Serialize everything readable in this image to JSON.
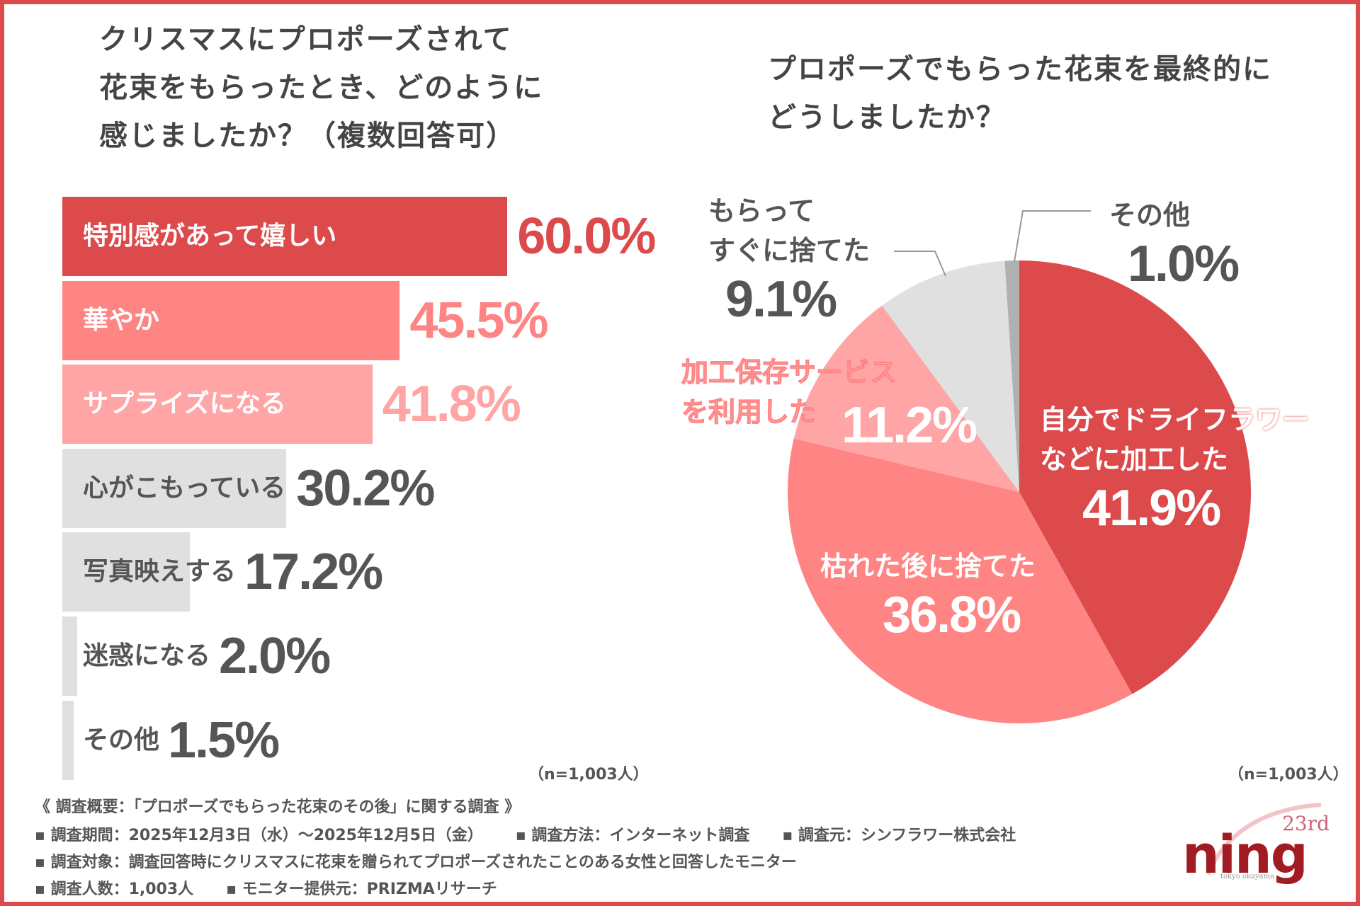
{
  "colors": {
    "red": "#dc4a4c",
    "pink": "#ff8585",
    "light_pink": "#ffa5a5",
    "gray": "#e0e0e0",
    "dark_gray": "#b0b0b0",
    "text": "#555555"
  },
  "chart_data": [
    {
      "type": "bar",
      "orientation": "horizontal",
      "title": [
        "クリスマスにプロポーズされて",
        "花束をもらったとき、どのように",
        "感じましたか？（複数回答可）"
      ],
      "categories": [
        "特別感があって嬉しい",
        "華やか",
        "サプライズになる",
        "心がこもっている",
        "写真映えする",
        "迷惑になる",
        "その他"
      ],
      "values": [
        60.0,
        45.5,
        41.8,
        30.2,
        17.2,
        2.0,
        1.5
      ],
      "labels": [
        "60.0%",
        "45.5%",
        "41.8%",
        "30.2%",
        "17.2%",
        "2.0%",
        "1.5%"
      ],
      "bar_colors": [
        "#dc4a4c",
        "#ff8585",
        "#ffa5a5",
        "#e0e0e0",
        "#e0e0e0",
        "#e0e0e0",
        "#e0e0e0"
      ],
      "note": "（n=1,003人）"
    },
    {
      "type": "pie",
      "title": [
        "プロポーズでもらった花束を最終的に",
        "どうしましたか？"
      ],
      "categories": [
        "自分でドライフラワーなどに加工した",
        "枯れた後に捨てた",
        "加工保存サービスを利用した",
        "もらってすぐに捨てた",
        "その他"
      ],
      "label_lines": [
        [
          "自分でドライフラワー",
          "などに加工した"
        ],
        [
          "枯れた後に捨てた"
        ],
        [
          "加工保存サービス",
          "を利用した"
        ],
        [
          "もらって",
          "すぐに捨てた"
        ],
        [
          "その他"
        ]
      ],
      "values": [
        41.9,
        36.8,
        11.2,
        9.1,
        1.0
      ],
      "labels": [
        "41.9%",
        "36.8%",
        "11.2%",
        "9.1%",
        "1.0%"
      ],
      "slice_colors": [
        "#dc4a4c",
        "#ff8585",
        "#ffa5a5",
        "#e0e0e0",
        "#b0b0b0"
      ],
      "start": "top",
      "direction": "clockwise",
      "note": "（n=1,003人）"
    }
  ],
  "footer": {
    "heading": "《 調査概要：「プロポーズでもらった花束のその後」に関する調査 》",
    "lines": [
      "▪ 調査期間：2025年12月3日（水）～2025年12月5日（金）      ▪ 調査方法：インターネット調査      ▪ 調査元：シンフラワー株式会社",
      "▪ 調査対象：調査回答時にクリスマスに花束を贈られてプロポーズされたことのある女性と回答したモニター",
      "▪ 調査人数：1,003人      ▪ モニター提供元：PRIZMAリサーチ"
    ]
  },
  "logo": {
    "text": "ning",
    "badge": "23rd",
    "sub": "tokyo   okayama"
  }
}
